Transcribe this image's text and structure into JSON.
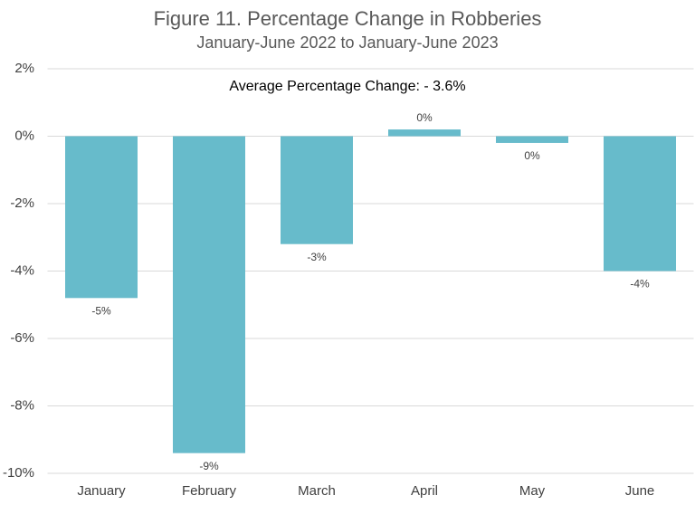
{
  "chart_data": {
    "type": "bar",
    "title": "Figure 11. Percentage Change in Robberies",
    "subtitle": "January-June 2022 to January-June 2023",
    "annotation": "Average Percentage Change: - 3.6%",
    "categories": [
      "January",
      "February",
      "March",
      "April",
      "May",
      "June"
    ],
    "values": [
      -4.8,
      -9.4,
      -3.2,
      0.2,
      -0.2,
      -4.0
    ],
    "value_labels": [
      "-5%",
      "-9%",
      "-3%",
      "0%",
      "0%",
      "-4%"
    ],
    "color": "#67bbcb",
    "ylim": [
      -10,
      2
    ],
    "yticks": [
      {
        "value": -10,
        "label": "-10%"
      },
      {
        "value": -8,
        "label": "-8%"
      },
      {
        "value": -6,
        "label": "-6%"
      },
      {
        "value": -4,
        "label": "-4%"
      },
      {
        "value": -2,
        "label": "-2%"
      },
      {
        "value": 0,
        "label": "0%"
      },
      {
        "value": 2,
        "label": "2%"
      }
    ],
    "grid": true
  }
}
